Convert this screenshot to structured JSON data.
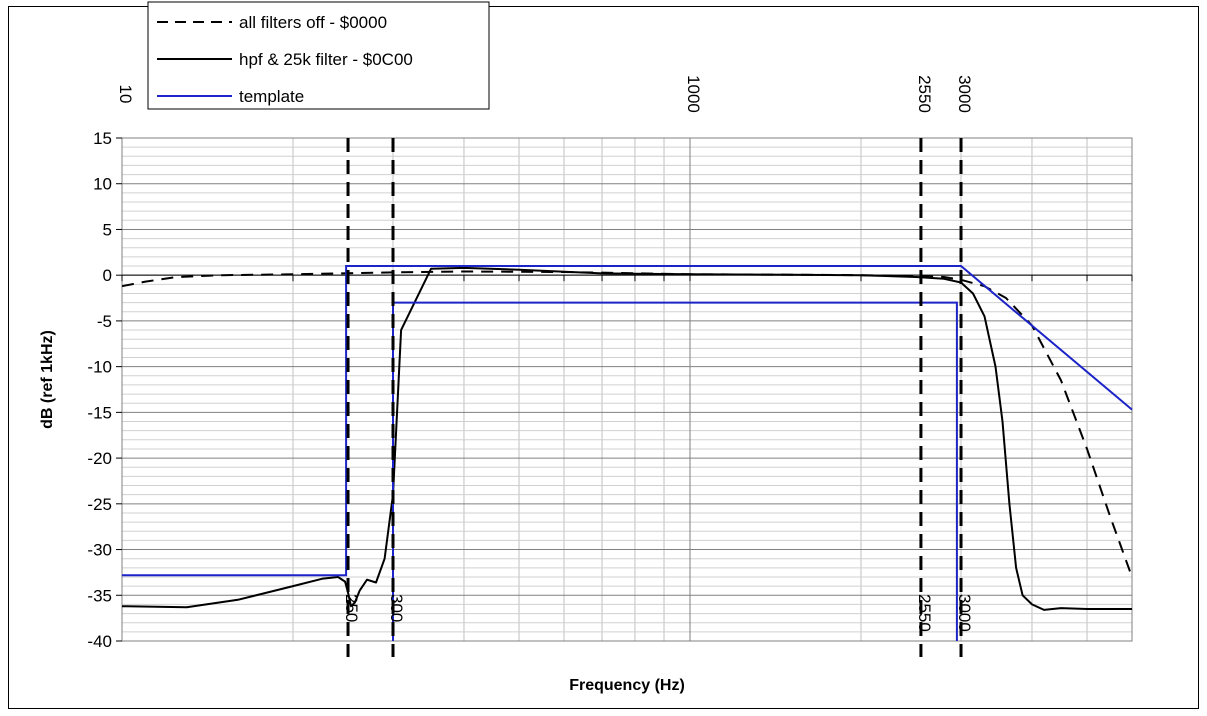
{
  "chart_data": {
    "type": "line",
    "xlabel": "Frequency (Hz)",
    "ylabel": "dB (ref 1kHz)",
    "x_scale": "log",
    "xlim": [
      100,
      6000
    ],
    "ylim": [
      -40,
      15
    ],
    "y_ticks": [
      15,
      10,
      5,
      0,
      -5,
      -10,
      -15,
      -20,
      -25,
      -30,
      -35,
      -40
    ],
    "grid": true,
    "legend_position": "top-left",
    "marker_labels": [
      {
        "text": "10",
        "x": 100,
        "position": "top"
      },
      {
        "text": "250",
        "x": 250,
        "position": "top"
      },
      {
        "text": "300",
        "x": 300,
        "position": "top"
      },
      {
        "text": "1000",
        "x": 1000,
        "position": "top"
      },
      {
        "text": "2550",
        "x": 2550,
        "position": "top"
      },
      {
        "text": "3000",
        "x": 3000,
        "position": "top"
      },
      {
        "text": "250",
        "x": 250,
        "position": "bottom"
      },
      {
        "text": "300",
        "x": 300,
        "position": "bottom"
      },
      {
        "text": "2550",
        "x": 2550,
        "position": "bottom"
      },
      {
        "text": "3000",
        "x": 3000,
        "position": "bottom"
      }
    ],
    "series": [
      {
        "name": "all filters off - $0000",
        "style": "dashed",
        "color": "#000000",
        "x": [
          100,
          110,
          125,
          150,
          200,
          300,
          400,
          600,
          1000,
          1500,
          2000,
          2500,
          2800,
          3000,
          3300,
          3600,
          4000,
          4500,
          5000,
          5500,
          6000
        ],
        "y": [
          -1.2,
          -0.7,
          -0.2,
          0.0,
          0.1,
          0.3,
          0.4,
          0.35,
          0.1,
          0.05,
          0.0,
          -0.1,
          -0.2,
          -0.5,
          -1.2,
          -2.5,
          -5.5,
          -11.5,
          -19.0,
          -26.5,
          -33.0
        ]
      },
      {
        "name": "hpf & 25k filter - $0C00",
        "style": "solid",
        "color": "#000000",
        "x": [
          100,
          130,
          160,
          200,
          225,
          240,
          247,
          250,
          253,
          257,
          262,
          270,
          280,
          290,
          300,
          310,
          350,
          400,
          500,
          700,
          1000,
          1500,
          2000,
          2500,
          2800,
          3000,
          3150,
          3300,
          3450,
          3550,
          3650,
          3750,
          3850,
          4000,
          4200,
          4500,
          5000,
          5500,
          6000
        ],
        "y": [
          -36.2,
          -36.3,
          -35.5,
          -34.0,
          -33.2,
          -33.0,
          -33.5,
          -34.7,
          -36.2,
          -35.8,
          -34.5,
          -33.3,
          -33.6,
          -31.0,
          -24.0,
          -6.0,
          0.7,
          0.8,
          0.6,
          0.2,
          0.1,
          0.05,
          0.0,
          -0.2,
          -0.4,
          -0.8,
          -2.0,
          -4.5,
          -10.0,
          -16.0,
          -25.0,
          -32.0,
          -35.0,
          -36.0,
          -36.6,
          -36.4,
          -36.5,
          -36.5,
          -36.5
        ]
      },
      {
        "name": "template",
        "style": "solid",
        "color": "#1c24c8",
        "segments": [
          {
            "x": [
              100,
              248,
              248,
              3000,
              6000
            ],
            "y": [
              -32.8,
              -32.8,
              1.0,
              1.0,
              -14.7
            ]
          },
          {
            "x": [
              300,
              300,
              2950,
              2950
            ],
            "y": [
              -40,
              -3.0,
              -3.0,
              -40
            ]
          }
        ]
      },
      {
        "name": "",
        "style": "dashed",
        "color": "#000000",
        "vertical_lines": [
          250,
          300,
          2550,
          3000
        ]
      }
    ]
  }
}
